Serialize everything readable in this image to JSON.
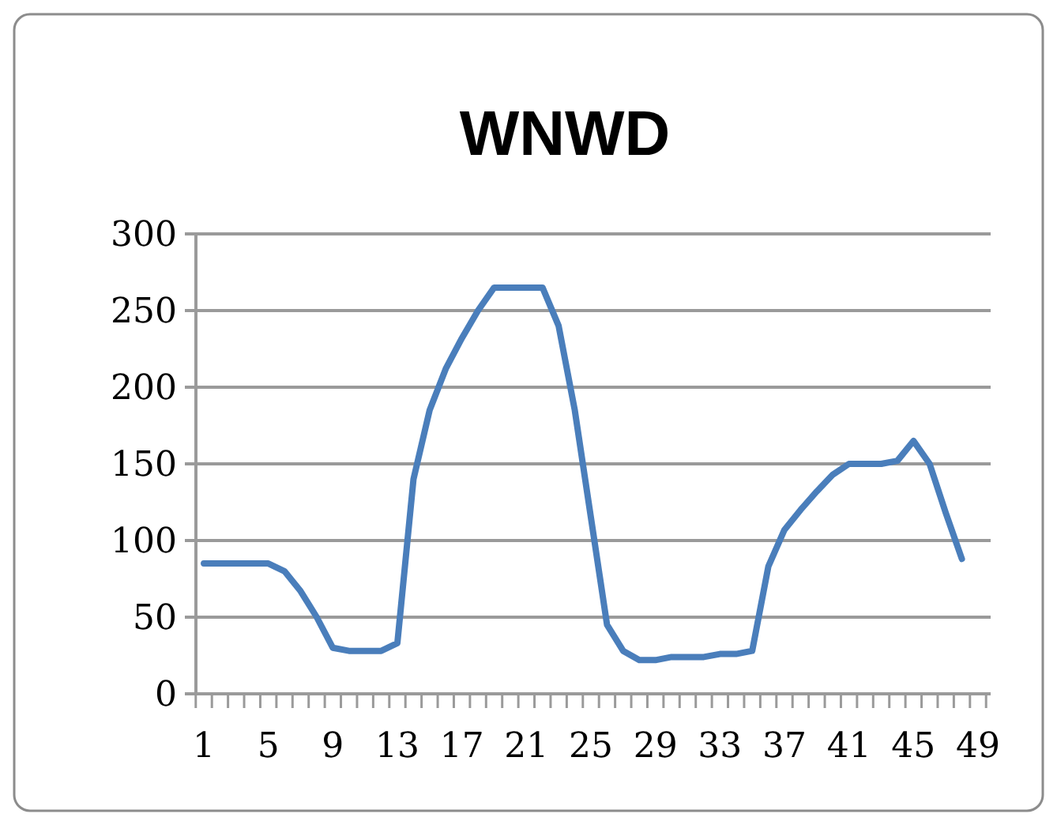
{
  "chart_data": {
    "type": "line",
    "title": "WNWD",
    "categories": [
      "1",
      null,
      null,
      null,
      "5",
      null,
      null,
      null,
      "9",
      null,
      null,
      null,
      "13",
      null,
      null,
      null,
      "17",
      null,
      null,
      null,
      "21",
      null,
      null,
      null,
      "25",
      null,
      null,
      null,
      "29",
      null,
      null,
      null,
      "33",
      null,
      null,
      null,
      "37",
      null,
      null,
      null,
      "41",
      null,
      null,
      null,
      "45",
      null,
      null,
      null,
      "49"
    ],
    "series": [
      {
        "color": "#4a7ebb",
        "values": [
          85,
          85,
          85,
          85,
          85,
          80,
          67,
          50,
          30,
          28,
          28,
          28,
          33,
          140,
          185,
          212,
          232,
          250,
          265,
          265,
          265,
          265,
          240,
          185,
          115,
          45,
          28,
          22,
          22,
          24,
          24,
          24,
          26,
          26,
          28,
          83,
          107,
          120,
          132,
          143,
          150,
          150,
          150,
          152,
          165,
          150,
          118,
          88,
          null
        ]
      }
    ],
    "ylim": [
      0,
      300
    ],
    "yticks": [
      0,
      50,
      100,
      150,
      200,
      250,
      300
    ],
    "grid": "y",
    "marker": "none",
    "line_style": "solid"
  }
}
